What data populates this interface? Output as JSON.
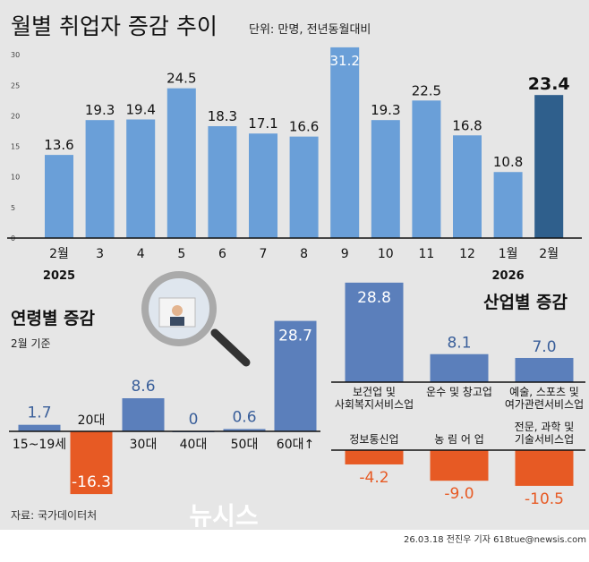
{
  "colors": {
    "bg": "#e6e6e6",
    "bar": "#6a9fd8",
    "highlight": "#2f5f8c",
    "pos": "#5b7fbb",
    "neg": "#e75a24",
    "poslabel": "#3a5f9a",
    "neglabel": "#e75a24"
  },
  "chart_data": [
    {
      "type": "bar",
      "title": "월별 취업자 증감 추이",
      "unit": "단위: 만명, 전년동월대비",
      "categories": [
        "2월",
        "3",
        "4",
        "5",
        "6",
        "7",
        "8",
        "9",
        "10",
        "11",
        "12",
        "1월",
        "2월"
      ],
      "years": [
        {
          "at": 0,
          "label": "2025"
        },
        {
          "at": 11,
          "label": "2026"
        }
      ],
      "values": [
        13.6,
        19.3,
        19.4,
        24.5,
        18.3,
        17.1,
        16.6,
        31.2,
        19.3,
        22.5,
        16.8,
        10.8,
        23.4
      ],
      "value_labels": [
        "13.6",
        "19.3",
        "19.4",
        "24.5",
        "18.3",
        "17.1",
        "16.6",
        "31.2",
        "19.3",
        "22.5",
        "16.8",
        "10.8",
        "23.4"
      ],
      "yticks": [
        "0",
        "5",
        "10",
        "15",
        "20",
        "25",
        "30"
      ],
      "ylim": [
        0,
        30
      ],
      "highlight_index": 12
    },
    {
      "type": "bar",
      "title": "연령별 증감",
      "subtitle": "2월 기준",
      "categories": [
        "15~19세",
        "20대",
        "30대",
        "40대",
        "50대",
        "60대↑"
      ],
      "values": [
        1.7,
        -16.3,
        8.6,
        0,
        0.6,
        28.7
      ],
      "value_labels": [
        "1.7",
        "-16.3",
        "8.6",
        "0",
        "0.6",
        "28.7"
      ]
    },
    {
      "type": "bar",
      "title": "산업별 증감",
      "increase": {
        "categories": [
          [
            "보건업 및",
            "사회복지서비스업"
          ],
          [
            "운수 및 창고업"
          ],
          [
            "예술, 스포츠 및",
            "여가관련서비스업"
          ]
        ],
        "values": [
          28.8,
          8.1,
          7.0
        ],
        "value_labels": [
          "28.8",
          "8.1",
          "7.0"
        ]
      },
      "decrease": {
        "categories": [
          [
            "정보통신업"
          ],
          [
            "농 림 어 업"
          ],
          [
            "전문, 과학 및",
            "기술서비스업"
          ]
        ],
        "values": [
          -4.2,
          -9.0,
          -10.5
        ],
        "value_labels": [
          "-4.2",
          "-9.0",
          "-10.5"
        ]
      }
    }
  ],
  "source": "자료: 국가데이터처",
  "credit": "26.03.18 전진우 기자 618tue@newsis.com",
  "watermark": "뉴시스"
}
